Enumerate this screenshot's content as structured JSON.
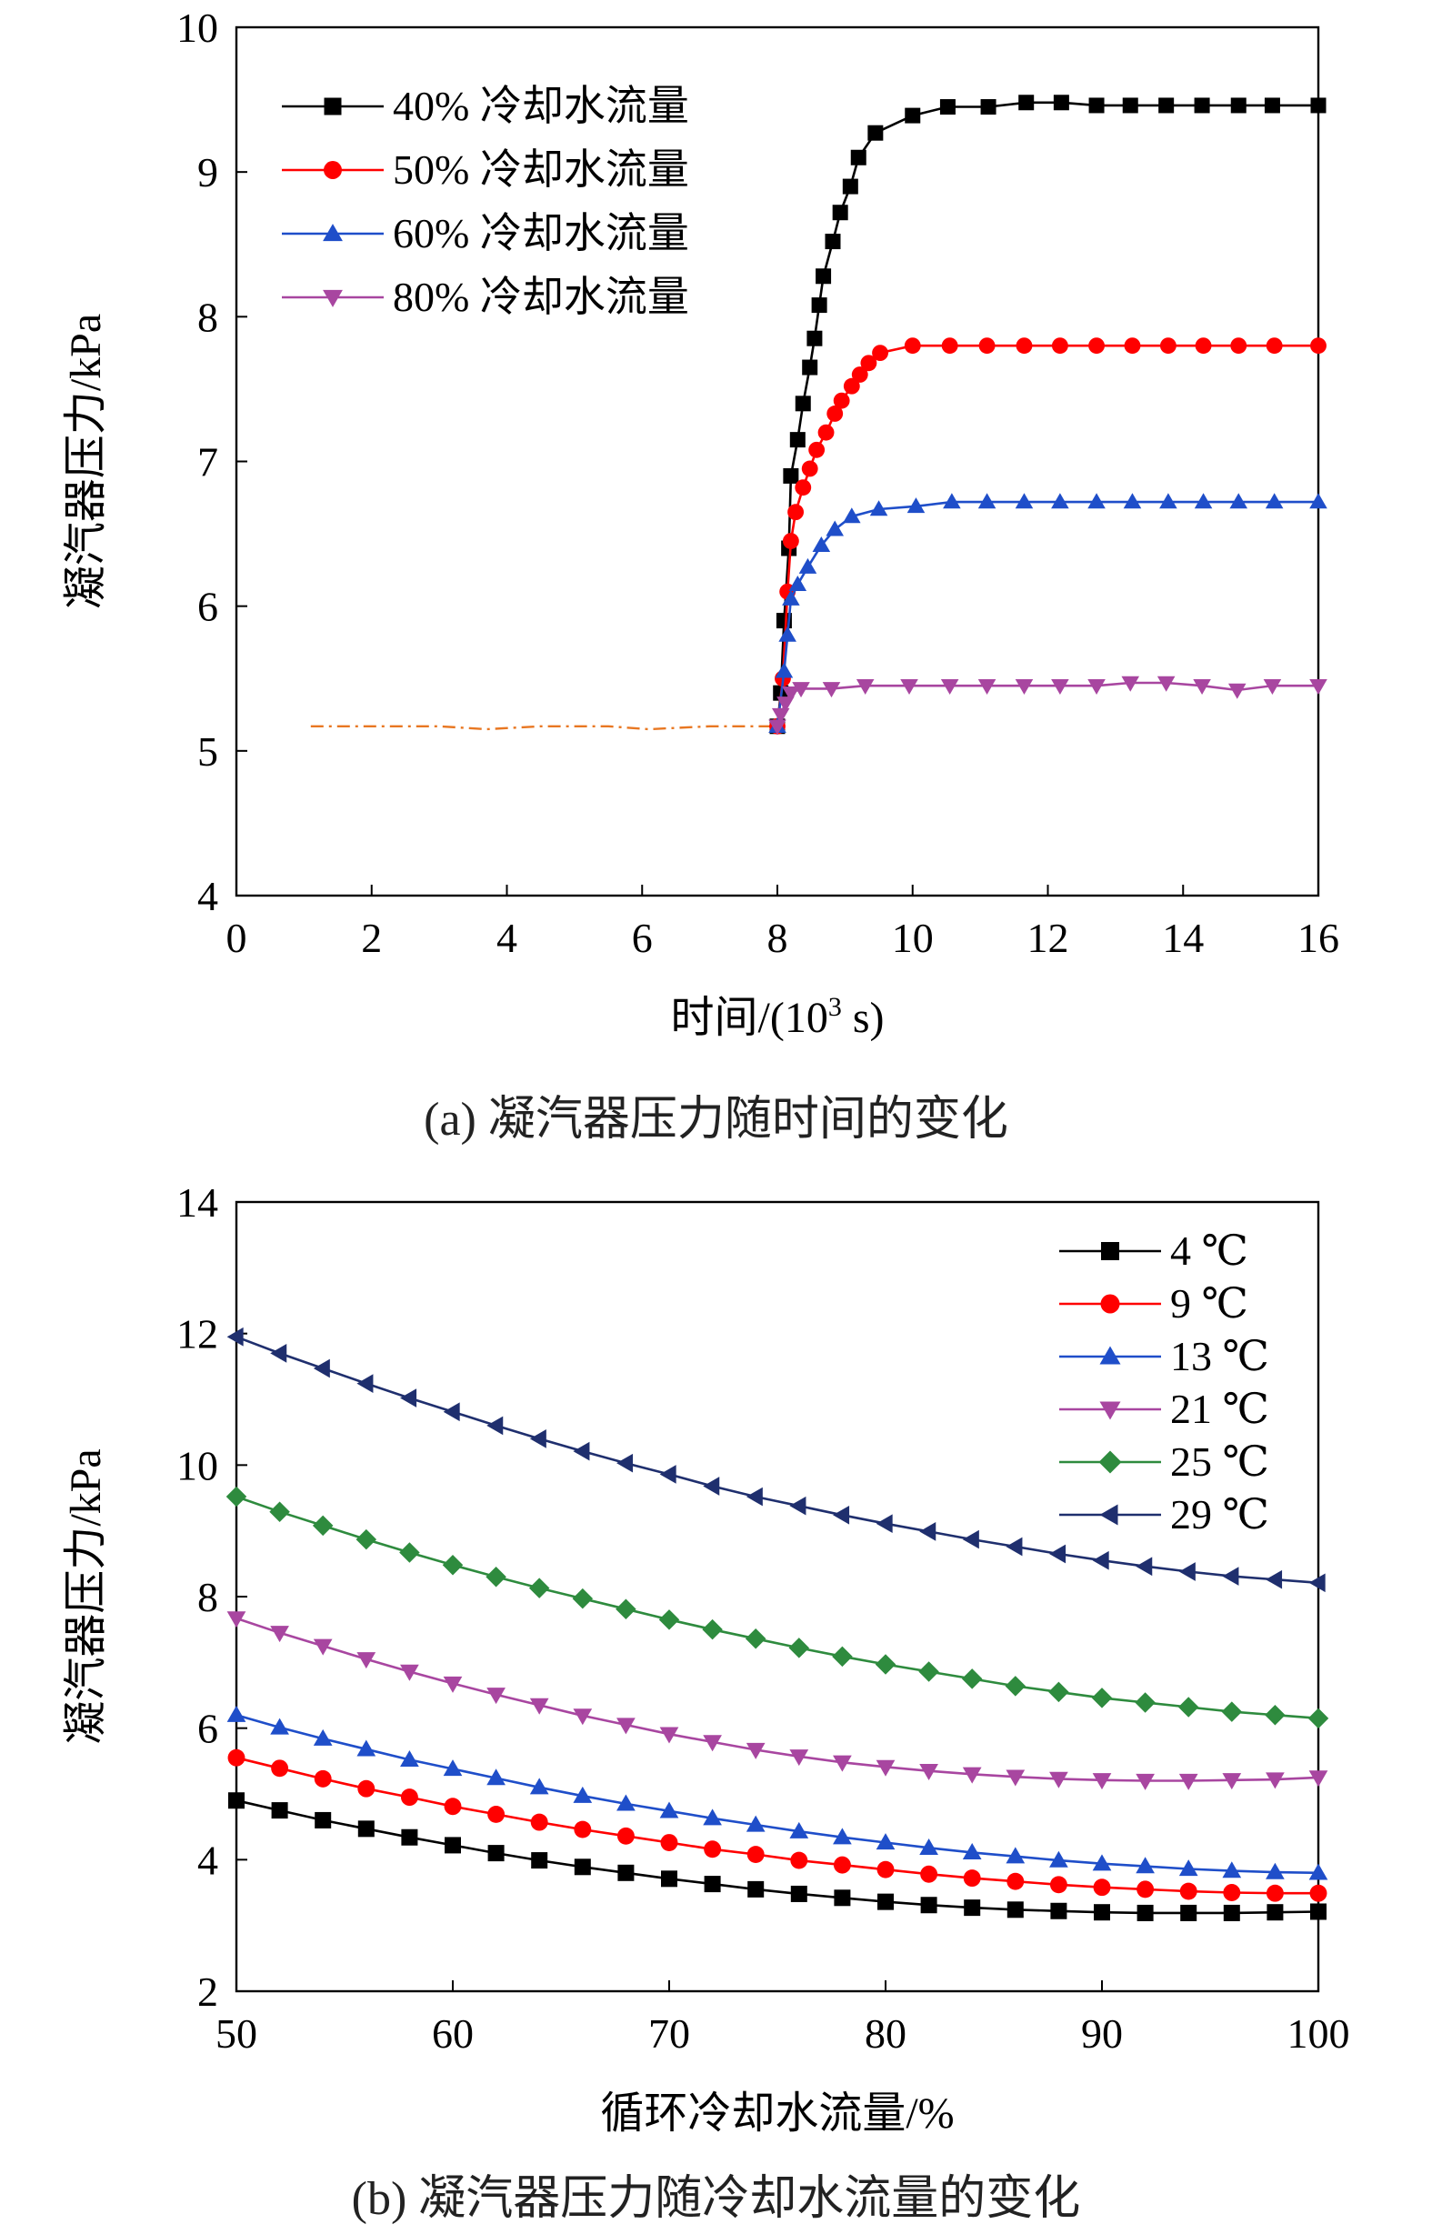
{
  "captions": {
    "a": "(a) 凝汽器压力随时间的变化",
    "b": "(b) 凝汽器压力随冷却水流量的变化"
  },
  "chart_data": [
    {
      "type": "line",
      "panel": "a",
      "title": "",
      "xlabel_main": "时间/(10",
      "xlabel_sup": "3",
      "xlabel_tail": " s)",
      "ylabel": "凝汽器压力/kPa",
      "xlim": [
        0,
        16
      ],
      "ylim": [
        4,
        10
      ],
      "xticks": [
        0,
        2,
        4,
        6,
        8,
        10,
        12,
        14,
        16
      ],
      "yticks": [
        4,
        5,
        6,
        7,
        8,
        9,
        10
      ],
      "legend_position": "top-left",
      "grid": false,
      "baseline": {
        "color": "#e87722",
        "points": [
          [
            1.1,
            5.17
          ],
          [
            2,
            5.17
          ],
          [
            3,
            5.17
          ],
          [
            3.7,
            5.15
          ],
          [
            4.5,
            5.17
          ],
          [
            5.5,
            5.17
          ],
          [
            6.1,
            5.15
          ],
          [
            7,
            5.17
          ],
          [
            8.0,
            5.17
          ]
        ]
      },
      "series": [
        {
          "name": "40% 冷却水流量",
          "color": "#000000",
          "marker": "square",
          "points": [
            [
              8.0,
              5.17
            ],
            [
              8.05,
              5.4
            ],
            [
              8.1,
              5.9
            ],
            [
              8.17,
              6.4
            ],
            [
              8.2,
              6.9
            ],
            [
              8.3,
              7.15
            ],
            [
              8.38,
              7.4
            ],
            [
              8.48,
              7.65
            ],
            [
              8.55,
              7.85
            ],
            [
              8.62,
              8.08
            ],
            [
              8.68,
              8.28
            ],
            [
              8.82,
              8.52
            ],
            [
              8.93,
              8.72
            ],
            [
              9.08,
              8.9
            ],
            [
              9.2,
              9.1
            ],
            [
              9.45,
              9.27
            ],
            [
              10.0,
              9.39
            ],
            [
              10.52,
              9.45
            ],
            [
              11.12,
              9.45
            ],
            [
              11.68,
              9.48
            ],
            [
              12.2,
              9.48
            ],
            [
              12.72,
              9.46
            ],
            [
              13.22,
              9.46
            ],
            [
              13.75,
              9.46
            ],
            [
              14.28,
              9.46
            ],
            [
              14.82,
              9.46
            ],
            [
              15.32,
              9.46
            ],
            [
              16.0,
              9.46
            ]
          ]
        },
        {
          "name": "50% 冷却水流量",
          "color": "#ff0000",
          "marker": "circle",
          "points": [
            [
              8.0,
              5.17
            ],
            [
              8.08,
              5.5
            ],
            [
              8.15,
              6.1
            ],
            [
              8.2,
              6.45
            ],
            [
              8.27,
              6.65
            ],
            [
              8.38,
              6.82
            ],
            [
              8.48,
              6.95
            ],
            [
              8.58,
              7.08
            ],
            [
              8.72,
              7.2
            ],
            [
              8.85,
              7.33
            ],
            [
              8.95,
              7.42
            ],
            [
              9.1,
              7.52
            ],
            [
              9.22,
              7.6
            ],
            [
              9.35,
              7.68
            ],
            [
              9.52,
              7.75
            ],
            [
              10.0,
              7.8
            ],
            [
              10.55,
              7.8
            ],
            [
              11.1,
              7.8
            ],
            [
              11.65,
              7.8
            ],
            [
              12.18,
              7.8
            ],
            [
              12.72,
              7.8
            ],
            [
              13.25,
              7.8
            ],
            [
              13.78,
              7.8
            ],
            [
              14.3,
              7.8
            ],
            [
              14.82,
              7.8
            ],
            [
              15.35,
              7.8
            ],
            [
              16.0,
              7.8
            ]
          ]
        },
        {
          "name": "60% 冷却水流量",
          "color": "#1f4ec9",
          "marker": "triangle-up",
          "points": [
            [
              8.0,
              5.17
            ],
            [
              8.1,
              5.55
            ],
            [
              8.15,
              5.8
            ],
            [
              8.2,
              6.05
            ],
            [
              8.3,
              6.15
            ],
            [
              8.45,
              6.27
            ],
            [
              8.65,
              6.42
            ],
            [
              8.85,
              6.53
            ],
            [
              9.1,
              6.62
            ],
            [
              9.5,
              6.67
            ],
            [
              10.05,
              6.69
            ],
            [
              10.58,
              6.72
            ],
            [
              11.1,
              6.72
            ],
            [
              11.65,
              6.72
            ],
            [
              12.18,
              6.72
            ],
            [
              12.72,
              6.72
            ],
            [
              13.25,
              6.72
            ],
            [
              13.78,
              6.72
            ],
            [
              14.3,
              6.72
            ],
            [
              14.82,
              6.72
            ],
            [
              15.35,
              6.72
            ],
            [
              16.0,
              6.72
            ]
          ]
        },
        {
          "name": "80% 冷却水流量",
          "color": "#a846a0",
          "marker": "triangle-down",
          "points": [
            [
              8.0,
              5.17
            ],
            [
              8.05,
              5.25
            ],
            [
              8.12,
              5.33
            ],
            [
              8.2,
              5.4
            ],
            [
              8.35,
              5.43
            ],
            [
              8.8,
              5.43
            ],
            [
              9.3,
              5.45
            ],
            [
              9.95,
              5.45
            ],
            [
              10.55,
              5.45
            ],
            [
              11.1,
              5.45
            ],
            [
              11.65,
              5.45
            ],
            [
              12.18,
              5.45
            ],
            [
              12.72,
              5.45
            ],
            [
              13.22,
              5.47
            ],
            [
              13.75,
              5.47
            ],
            [
              14.28,
              5.45
            ],
            [
              14.8,
              5.42
            ],
            [
              15.32,
              5.45
            ],
            [
              16.0,
              5.45
            ]
          ]
        }
      ]
    },
    {
      "type": "line",
      "panel": "b",
      "title": "",
      "xlabel": "循环冷却水流量/%",
      "ylabel": "凝汽器压力/kPa",
      "xlim": [
        50,
        100
      ],
      "ylim": [
        2,
        14
      ],
      "xticks": [
        50,
        60,
        70,
        80,
        90,
        100
      ],
      "yticks": [
        2,
        4,
        6,
        8,
        10,
        12,
        14
      ],
      "legend_position": "top-right",
      "grid": false,
      "x": [
        50,
        52,
        54,
        56,
        58,
        60,
        62,
        64,
        66,
        68,
        70,
        72,
        74,
        76,
        78,
        80,
        82,
        84,
        86,
        88,
        90,
        92,
        94,
        96,
        98,
        100
      ],
      "series": [
        {
          "name": "4 ℃",
          "color": "#000000",
          "marker": "square",
          "values": [
            4.9,
            4.75,
            4.6,
            4.47,
            4.34,
            4.22,
            4.1,
            3.99,
            3.89,
            3.8,
            3.71,
            3.63,
            3.55,
            3.48,
            3.42,
            3.36,
            3.31,
            3.27,
            3.24,
            3.22,
            3.2,
            3.19,
            3.19,
            3.19,
            3.2,
            3.21
          ]
        },
        {
          "name": "9 ℃",
          "color": "#ff0000",
          "marker": "circle",
          "values": [
            5.55,
            5.39,
            5.23,
            5.08,
            4.95,
            4.81,
            4.69,
            4.57,
            4.46,
            4.36,
            4.26,
            4.16,
            4.08,
            3.99,
            3.92,
            3.85,
            3.78,
            3.72,
            3.67,
            3.62,
            3.58,
            3.55,
            3.52,
            3.5,
            3.49,
            3.49
          ]
        },
        {
          "name": "13 ℃",
          "color": "#1f4ec9",
          "marker": "triangle-up",
          "values": [
            6.2,
            6.01,
            5.84,
            5.68,
            5.52,
            5.38,
            5.24,
            5.1,
            4.97,
            4.85,
            4.74,
            4.63,
            4.53,
            4.43,
            4.34,
            4.26,
            4.18,
            4.11,
            4.05,
            3.99,
            3.94,
            3.9,
            3.86,
            3.83,
            3.81,
            3.8
          ]
        },
        {
          "name": "21 ℃",
          "color": "#a846a0",
          "marker": "triangle-down",
          "values": [
            7.67,
            7.45,
            7.25,
            7.05,
            6.86,
            6.68,
            6.51,
            6.35,
            6.19,
            6.05,
            5.91,
            5.79,
            5.67,
            5.57,
            5.48,
            5.41,
            5.35,
            5.3,
            5.26,
            5.23,
            5.21,
            5.2,
            5.2,
            5.21,
            5.22,
            5.25
          ]
        },
        {
          "name": "25 ℃",
          "color": "#2e8b3e",
          "marker": "diamond",
          "values": [
            9.52,
            9.29,
            9.08,
            8.87,
            8.67,
            8.48,
            8.3,
            8.13,
            7.97,
            7.81,
            7.65,
            7.5,
            7.36,
            7.22,
            7.09,
            6.97,
            6.86,
            6.75,
            6.64,
            6.55,
            6.46,
            6.39,
            6.32,
            6.25,
            6.2,
            6.15
          ]
        },
        {
          "name": "29 ℃",
          "color": "#1f2f6e",
          "marker": "triangle-left",
          "values": [
            11.95,
            11.7,
            11.47,
            11.24,
            11.02,
            10.81,
            10.6,
            10.4,
            10.21,
            10.03,
            9.86,
            9.68,
            9.52,
            9.38,
            9.24,
            9.11,
            8.99,
            8.87,
            8.76,
            8.65,
            8.55,
            8.46,
            8.38,
            8.31,
            8.26,
            8.21
          ]
        }
      ]
    }
  ]
}
